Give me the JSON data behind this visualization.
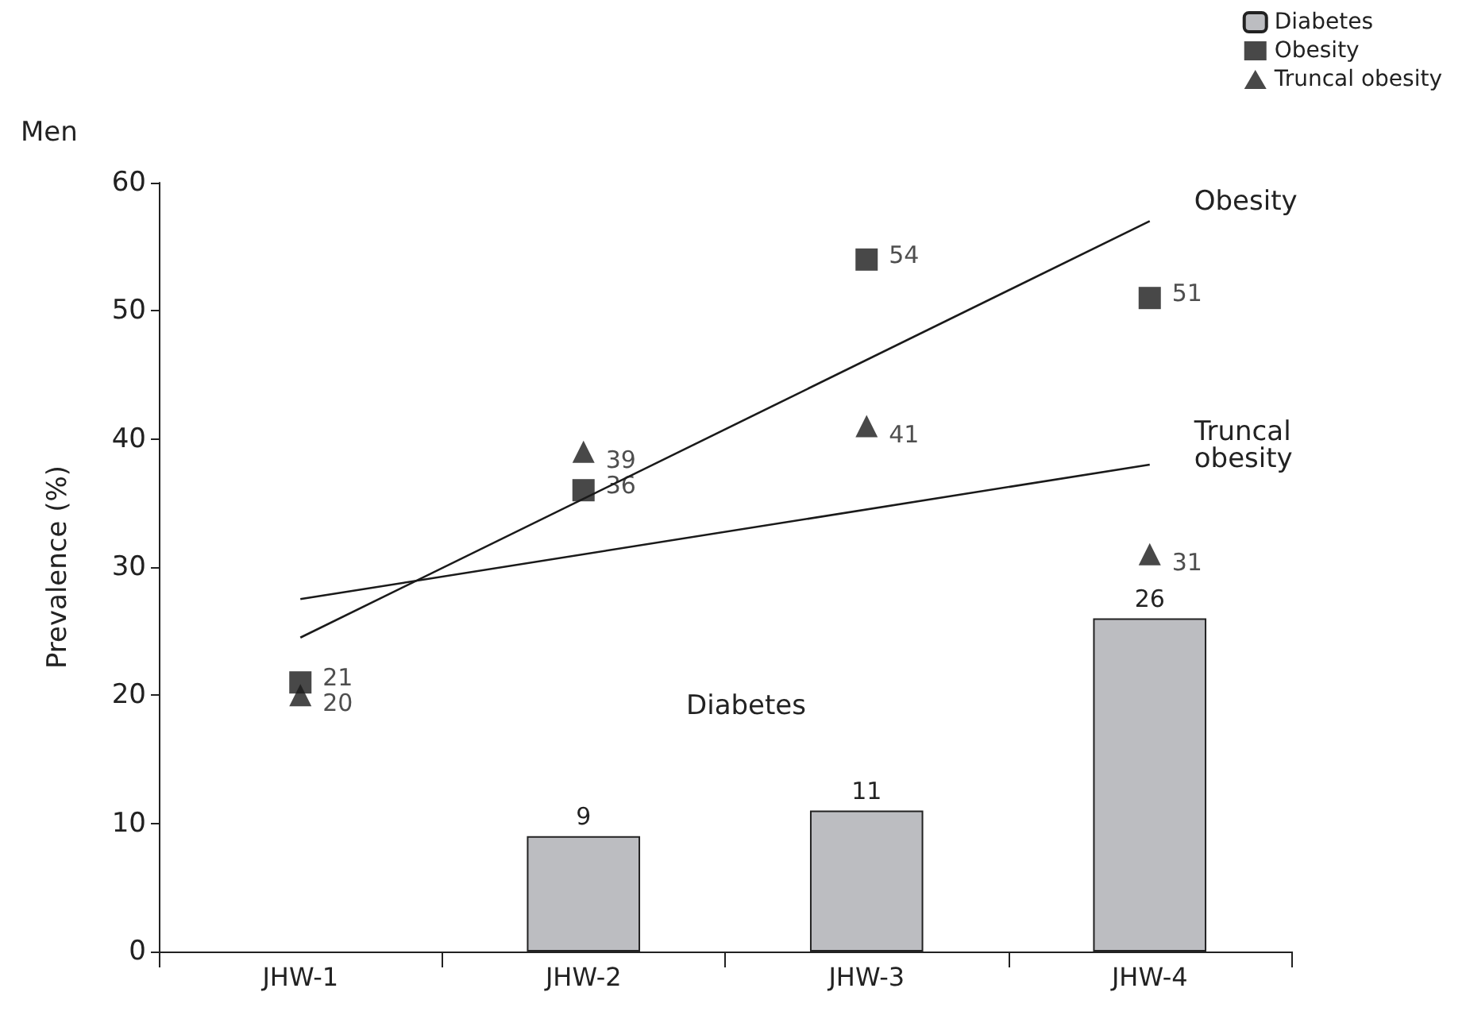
{
  "chart_data": {
    "type": "bar",
    "title": "Men",
    "ylabel": "Prevalence (%)",
    "categories": [
      "JHW-1",
      "JHW-2",
      "JHW-3",
      "JHW-4"
    ],
    "series": [
      {
        "name": "Diabetes",
        "color": "#bcbdc1",
        "values": [
          null,
          9,
          11,
          26
        ],
        "value_labels": [
          null,
          "9",
          "11",
          "26"
        ]
      },
      {
        "name": "Obesity",
        "type": "scatter",
        "marker": "square",
        "color": "#1a1a1a",
        "x": [
          "JHW-1",
          "JHW-2",
          "JHW-3",
          "JHW-4"
        ],
        "values": [
          21,
          36,
          54,
          51
        ],
        "value_labels": [
          "21",
          "36",
          "54",
          "51"
        ]
      },
      {
        "name": "Truncal obesity",
        "type": "scatter",
        "marker": "triangle",
        "color": "#1a1a1a",
        "x": [
          "JHW-1",
          "JHW-2",
          "JHW-3",
          "JHW-4"
        ],
        "values": [
          20,
          39,
          41,
          31
        ],
        "value_labels": [
          "20",
          "39",
          "41",
          "31"
        ]
      },
      {
        "name": "Obesity",
        "type": "line",
        "marker": "none",
        "color": "#1a1a1a",
        "x": [
          "JHW-1",
          "JHW-4"
        ],
        "values": [
          24.5,
          57
        ]
      },
      {
        "name": "Truncal obesity",
        "type": "line",
        "marker": "none",
        "color": "#1a1a1a",
        "x": [
          "JHW-1",
          "JHW-4"
        ],
        "values": [
          27.5,
          38
        ]
      }
    ],
    "annotations": [
      "Diabetes"
    ],
    "ylim": [
      0,
      60
    ],
    "yticks": [
      0,
      10,
      20,
      30,
      40,
      50,
      60
    ],
    "grid": false,
    "legend": "top right",
    "line_style": "solid"
  }
}
